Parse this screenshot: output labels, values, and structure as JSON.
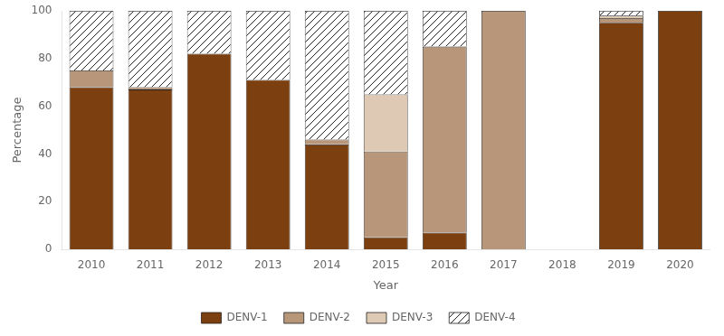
{
  "chart_data": {
    "type": "bar",
    "stacked": true,
    "categories": [
      "2010",
      "2011",
      "2012",
      "2013",
      "2014",
      "2015",
      "2016",
      "2017",
      "2018",
      "2019",
      "2020"
    ],
    "series": [
      {
        "name": "DENV-1",
        "color": "#7B3F10",
        "values": [
          68,
          67,
          82,
          71,
          44,
          5,
          7,
          0,
          0,
          95,
          100
        ]
      },
      {
        "name": "DENV-2",
        "color": "#B8967A",
        "values": [
          7,
          1,
          0,
          0,
          2,
          36,
          78,
          100,
          0,
          2,
          0
        ]
      },
      {
        "name": "DENV-3",
        "color": "#DEC9B4",
        "values": [
          0,
          0,
          0,
          0,
          0,
          24,
          0,
          0,
          0,
          1,
          0
        ]
      },
      {
        "name": "DENV-4",
        "color": "#FFFFFF",
        "values": [
          25,
          32,
          18,
          29,
          54,
          35,
          15,
          0,
          0,
          2,
          0
        ]
      }
    ],
    "xlabel": "Year",
    "ylabel": "Percentage",
    "ylim": [
      0,
      100
    ],
    "yticks": [
      0,
      20,
      40,
      60,
      80,
      100
    ],
    "grid": false,
    "legend": "bottom"
  }
}
